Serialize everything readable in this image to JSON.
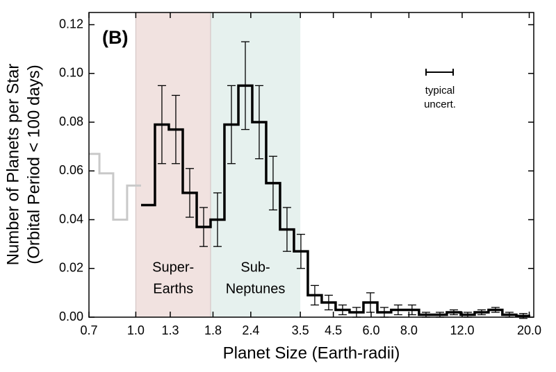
{
  "chart_data": {
    "type": "histogram",
    "title": "(B)",
    "xlabel": "Planet Size (Earth-radii)",
    "ylabel": [
      "Number of Planets per Star",
      "(Orbital Period < 100 days)"
    ],
    "xscale": "log",
    "grid": false,
    "xlim": [
      0.7,
      20.7
    ],
    "ylim": [
      0,
      0.125
    ],
    "xticks": [
      0.7,
      {
        "value": 1,
        "label": "1.0"
      },
      1.3,
      1.8,
      2.4,
      3.5,
      4.5,
      {
        "value": 6,
        "label": "6.0"
      },
      {
        "value": 8,
        "label": "8.0"
      },
      {
        "value": 12,
        "label": "12.0"
      },
      {
        "value": 20,
        "label": "20.0"
      }
    ],
    "yticks": [
      {
        "value": 0,
        "label": "0.00"
      },
      {
        "value": 0.02,
        "label": "0.02"
      },
      {
        "value": 0.04,
        "label": "0.04"
      },
      {
        "value": 0.06,
        "label": "0.06"
      },
      {
        "value": 0.08,
        "label": "0.08"
      },
      {
        "value": 0.1,
        "label": "0.10"
      },
      {
        "value": 0.12,
        "label": "0.12"
      }
    ],
    "regions": [
      {
        "label": [
          "Super-",
          "Earths"
        ],
        "range": [
          1.0,
          1.767
        ],
        "color": "#f1e2e0"
      },
      {
        "label": [
          "Sub-",
          "Neptunes"
        ],
        "range": [
          1.767,
          3.5
        ],
        "color": "#e6f1ee"
      }
    ],
    "annotation": [
      "typical",
      "uncert."
    ],
    "series": [
      {
        "color": "#c9c9c9",
        "bins": [
          0.7,
          0.758,
          0.842,
          0.936,
          1.041
        ],
        "values": [
          0.067,
          0.059,
          0.04,
          0.054
        ],
        "errors": [
          null,
          null,
          null,
          null
        ]
      },
      {
        "color": "#000000",
        "bins": [
          1.041,
          1.157,
          1.286,
          1.43,
          1.59,
          1.767,
          1.964,
          2.184,
          2.427,
          2.698,
          2.999,
          3.334,
          3.706,
          4.119,
          4.579,
          5.091,
          5.66,
          6.293,
          6.99,
          7.77,
          8.64,
          9.61,
          10.68,
          11.87,
          13.2,
          14.67,
          16.3,
          18.13,
          20.15
        ],
        "values": [
          0.046,
          0.079,
          0.077,
          0.051,
          0.037,
          0.04,
          0.079,
          0.095,
          0.08,
          0.055,
          0.036,
          0.027,
          0.009,
          0.006,
          0.003,
          0.002,
          0.006,
          0.002,
          0.003,
          0.003,
          0.001,
          0.001,
          0.002,
          0.001,
          0.002,
          0.003,
          0.001,
          0.0005
        ],
        "errors": [
          null,
          0.016,
          0.014,
          0.01,
          0.008,
          0.011,
          0.016,
          0.018,
          0.015,
          0.011,
          0.009,
          0.007,
          0.004,
          0.003,
          0.002,
          0.002,
          0.004,
          0.002,
          0.002,
          0.002,
          0.001,
          0.001,
          0.001,
          0.001,
          0.001,
          0.001,
          0.001,
          0.001
        ]
      }
    ]
  }
}
